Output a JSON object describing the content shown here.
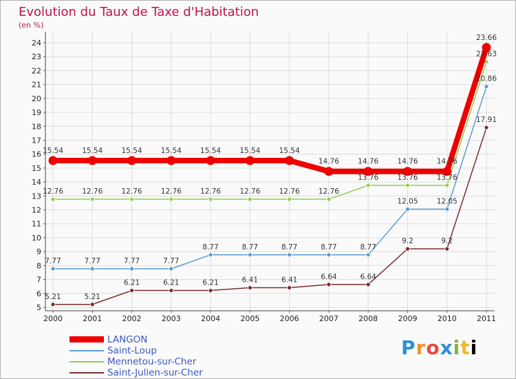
{
  "title": "Evolution du Taux de Taxe d'Habitation",
  "unit": "(en %)",
  "logo": [
    "P",
    "r",
    "o",
    "x",
    "i",
    "t",
    "i"
  ],
  "chart_data": {
    "type": "line",
    "title": "Evolution du Taux de Taxe d'Habitation",
    "ylabel": "(en %)",
    "xlabel": "",
    "x": [
      "2000",
      "2001",
      "2002",
      "2003",
      "2004",
      "2005",
      "2006",
      "2007",
      "2008",
      "2009",
      "2010",
      "2011"
    ],
    "ylim": [
      5,
      24
    ],
    "yticks": [
      5,
      6,
      7,
      8,
      9,
      10,
      11,
      12,
      13,
      14,
      15,
      16,
      17,
      18,
      19,
      20,
      21,
      22,
      23,
      24
    ],
    "grid": true,
    "legend": "bottom-left",
    "series": [
      {
        "name": "LANGON",
        "color": "#ee0000",
        "values": [
          15.54,
          15.54,
          15.54,
          15.54,
          15.54,
          15.54,
          15.54,
          14.76,
          14.76,
          14.76,
          14.76,
          23.66
        ],
        "labels": [
          "15.54",
          "15.54",
          "15.54",
          "15.54",
          "15.54",
          "15.54",
          "15.54",
          "14.76",
          "14.76",
          "14.76",
          "14.76",
          "23.66"
        ]
      },
      {
        "name": "Saint-Loup",
        "color": "#5b9bd5",
        "values": [
          7.77,
          7.77,
          7.77,
          7.77,
          8.77,
          8.77,
          8.77,
          8.77,
          8.77,
          12.05,
          12.05,
          20.86
        ],
        "labels": [
          "7.77",
          "7.77",
          "7.77",
          "7.77",
          "8.77",
          "8.77",
          "8.77",
          "8.77",
          "8.77",
          "12.05",
          "12.05",
          "20.86"
        ]
      },
      {
        "name": "Mennetou-sur-Cher",
        "color": "#92d050",
        "values": [
          12.76,
          12.76,
          12.76,
          12.76,
          12.76,
          12.76,
          12.76,
          12.76,
          13.76,
          13.76,
          13.76,
          22.63
        ],
        "labels": [
          "12.76",
          "12.76",
          "12.76",
          "12.76",
          "12.76",
          "12.76",
          "12.76",
          "12.76",
          "13.76",
          "13.76",
          "13.76",
          "22.63"
        ]
      },
      {
        "name": "Saint-Julien-sur-Cher",
        "color": "#7b2c2c",
        "values": [
          5.21,
          5.21,
          6.21,
          6.21,
          6.21,
          6.41,
          6.41,
          6.64,
          6.64,
          9.2,
          9.2,
          17.91
        ],
        "labels": [
          "5.21",
          "5.21",
          "6.21",
          "6.21",
          "6.21",
          "6.41",
          "6.41",
          "6.64",
          "6.64",
          "9.2",
          "9.2",
          "17.91"
        ]
      }
    ]
  }
}
